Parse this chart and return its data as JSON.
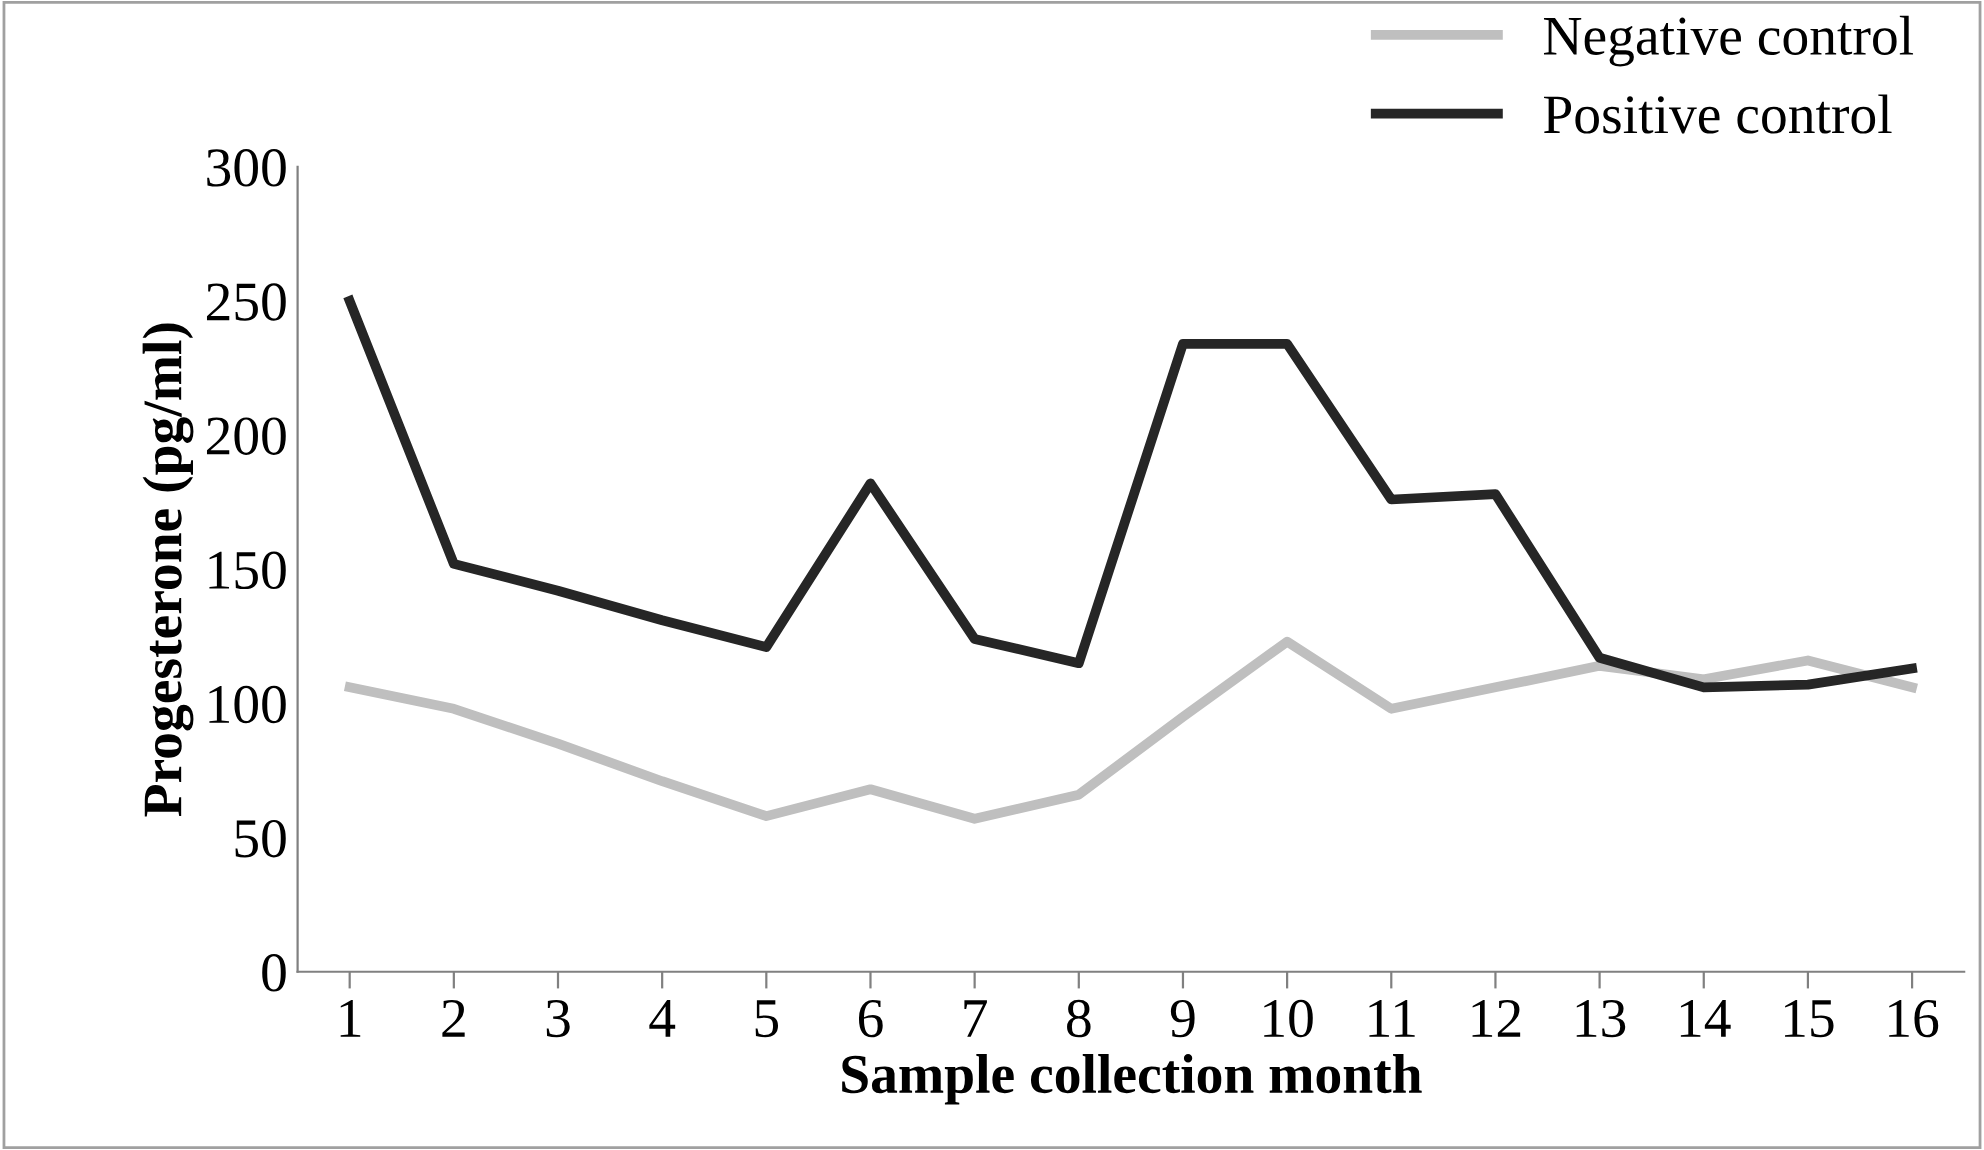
{
  "chart_data": {
    "type": "line",
    "xlabel": "Sample collection month",
    "ylabel": "Progesterone (pg/ml)",
    "categories": [
      "1",
      "2",
      "3",
      "4",
      "5",
      "6",
      "7",
      "8",
      "9",
      "10",
      "11",
      "12",
      "13",
      "14",
      "15",
      "16"
    ],
    "series": [
      {
        "name": "Negative control",
        "color": "#bfbfbf",
        "values": [
          106,
          98,
          85,
          71,
          58,
          68,
          57,
          66,
          95,
          123,
          98,
          106,
          114,
          109,
          116,
          106
        ]
      },
      {
        "name": "Positive control",
        "color": "#262626",
        "values": [
          250,
          152,
          142,
          131,
          121,
          182,
          124,
          115,
          234,
          234,
          176,
          178,
          117,
          106,
          107,
          113
        ]
      }
    ],
    "ylim": [
      0,
      300
    ],
    "yticks": [
      0,
      50,
      100,
      150,
      200,
      250,
      300
    ],
    "grid": false,
    "legend": "top right",
    "marker": "none",
    "line_style": "solid"
  }
}
